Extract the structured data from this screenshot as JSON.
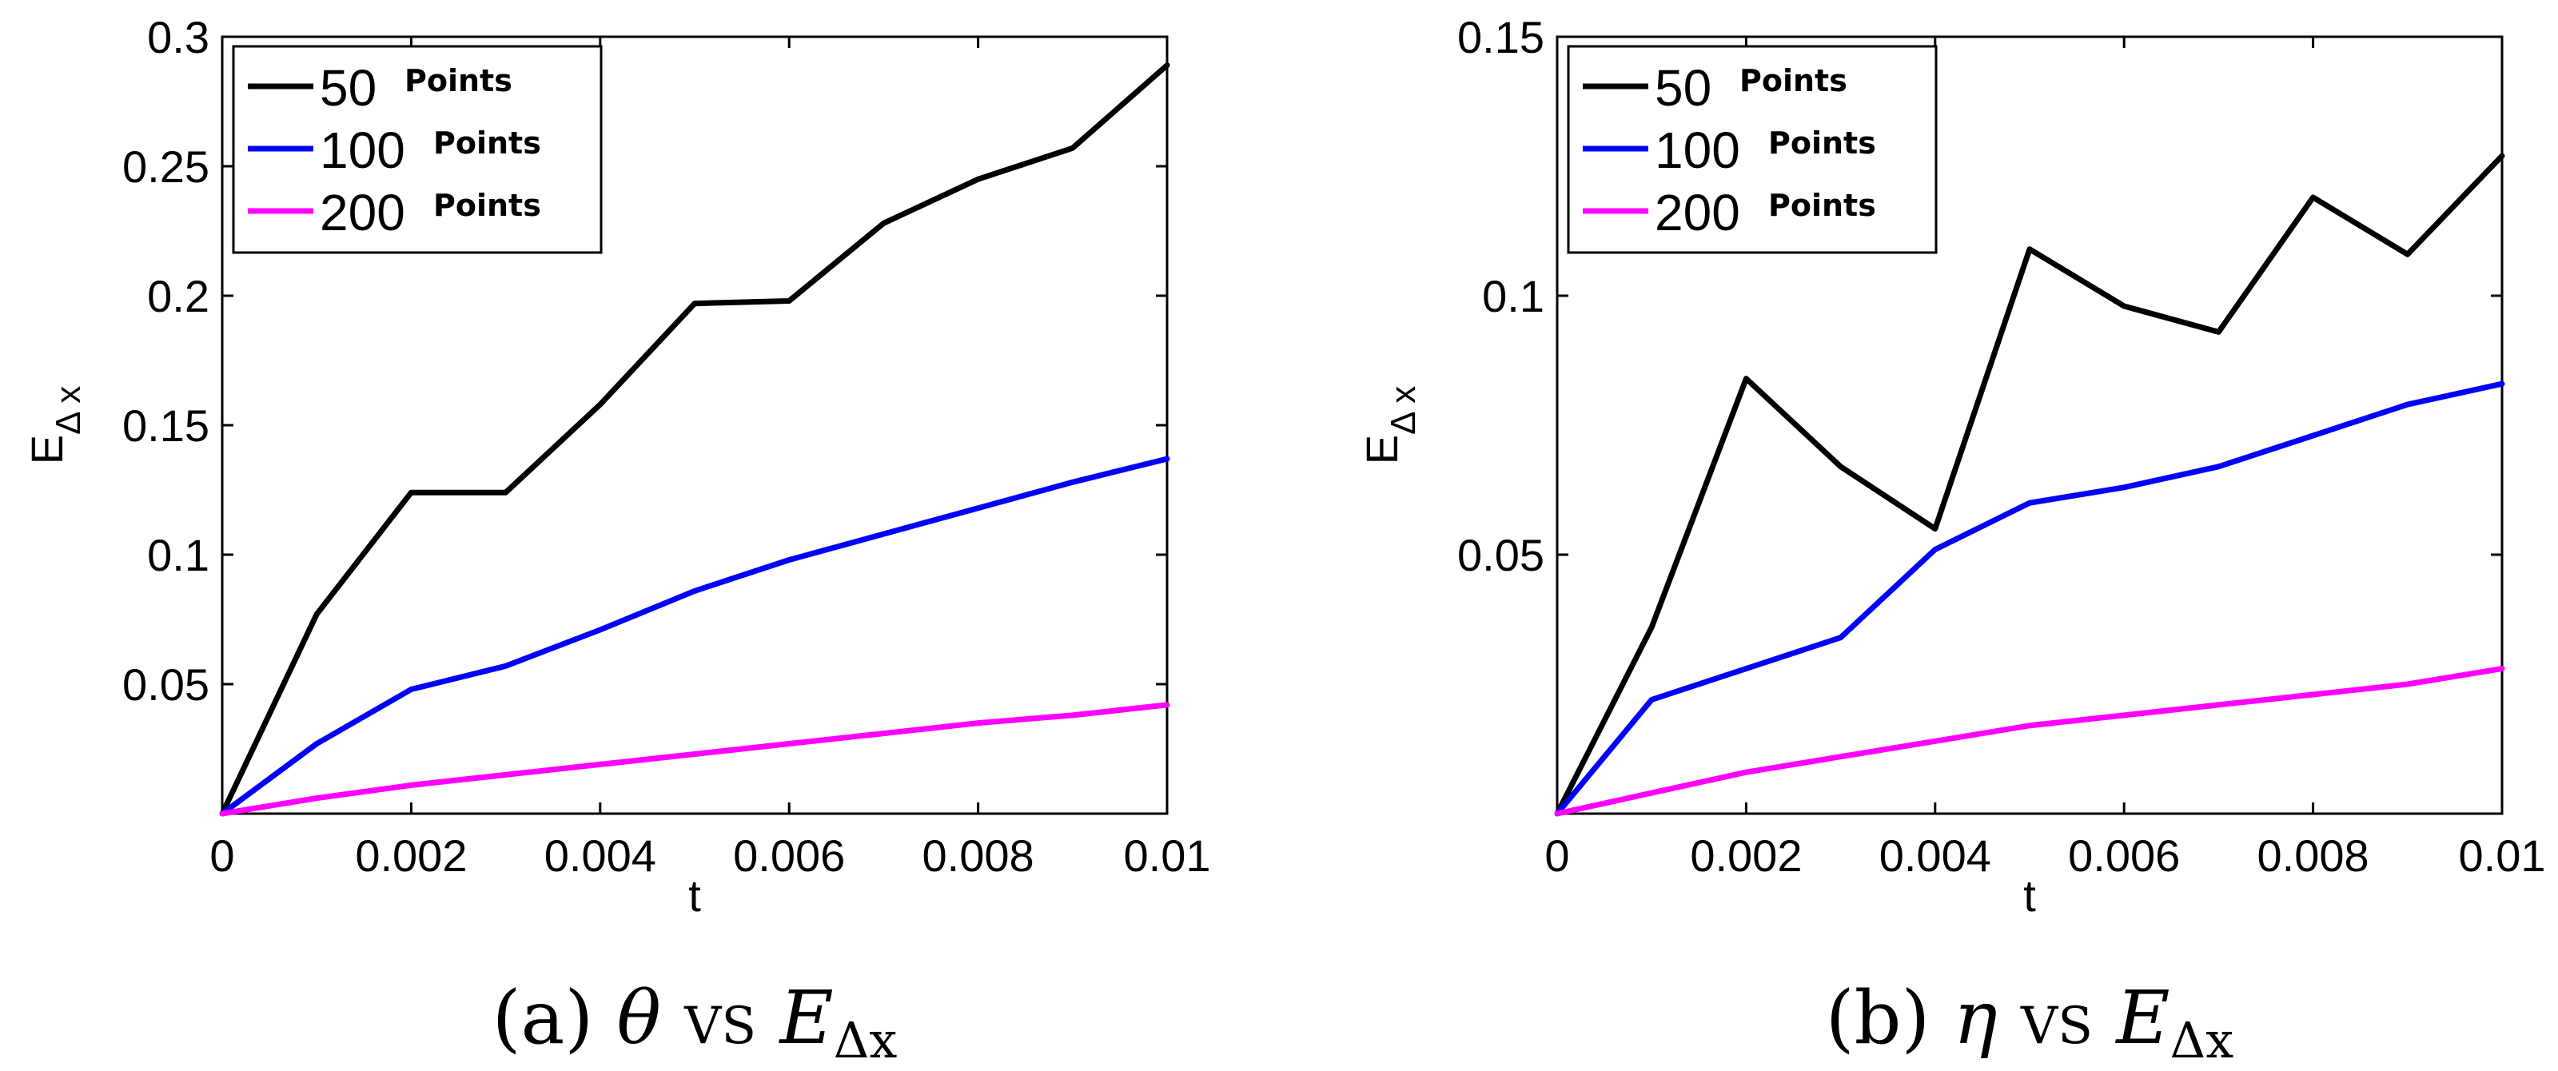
{
  "chart_data": [
    {
      "type": "line",
      "panel": "a",
      "caption": {
        "label": "(a)",
        "var": "θ",
        "vs": "vs",
        "err": "E",
        "err_sub": "Δx"
      },
      "xlabel": "t",
      "ylabel": "E",
      "ylabel_sub": "Δ x",
      "xlim": [
        0,
        0.01
      ],
      "ylim": [
        0,
        0.3
      ],
      "xticks": [
        "0",
        "0.002",
        "0.004",
        "0.006",
        "0.008",
        "0.01"
      ],
      "xtick_values": [
        0,
        0.002,
        0.004,
        0.006,
        0.008,
        0.01
      ],
      "yticks": [
        "0.05",
        "0.1",
        "0.15",
        "0.2",
        "0.25",
        "0.3"
      ],
      "ytick_values": [
        0.05,
        0.1,
        0.15,
        0.2,
        0.25,
        0.3
      ],
      "x": [
        0,
        0.001,
        0.002,
        0.003,
        0.004,
        0.005,
        0.006,
        0.007,
        0.008,
        0.009,
        0.01
      ],
      "legend_position": "top-left",
      "series": [
        {
          "name": "50",
          "suffix": "Points",
          "color": "#000000",
          "values": [
            0,
            0.077,
            0.124,
            0.124,
            0.158,
            0.197,
            0.198,
            0.228,
            0.245,
            0.257,
            0.289
          ]
        },
        {
          "name": "100",
          "suffix": "Points",
          "color": "#0000ff",
          "values": [
            0,
            0.027,
            0.048,
            0.057,
            0.071,
            0.086,
            0.098,
            0.108,
            0.118,
            0.128,
            0.137
          ]
        },
        {
          "name": "200",
          "suffix": "Points",
          "color": "#ff00ff",
          "values": [
            0,
            0.006,
            0.011,
            0.015,
            0.019,
            0.023,
            0.027,
            0.031,
            0.035,
            0.038,
            0.042
          ]
        }
      ]
    },
    {
      "type": "line",
      "panel": "b",
      "caption": {
        "label": "(b)",
        "var": "η",
        "vs": "vs",
        "err": "E",
        "err_sub": "Δx"
      },
      "xlabel": "t",
      "ylabel": "E",
      "ylabel_sub": "Δ x",
      "xlim": [
        0,
        0.01
      ],
      "ylim": [
        0,
        0.15
      ],
      "xticks": [
        "0",
        "0.002",
        "0.004",
        "0.006",
        "0.008",
        "0.01"
      ],
      "xtick_values": [
        0,
        0.002,
        0.004,
        0.006,
        0.008,
        0.01
      ],
      "yticks": [
        "0.05",
        "0.1",
        "0.15"
      ],
      "ytick_values": [
        0.05,
        0.1,
        0.15
      ],
      "x": [
        0,
        0.001,
        0.002,
        0.003,
        0.004,
        0.005,
        0.006,
        0.007,
        0.008,
        0.009,
        0.01
      ],
      "legend_position": "top-left",
      "series": [
        {
          "name": "50",
          "suffix": "Points",
          "color": "#000000",
          "values": [
            0,
            0.036,
            0.084,
            0.067,
            0.055,
            0.109,
            0.098,
            0.093,
            0.119,
            0.108,
            0.127
          ]
        },
        {
          "name": "100",
          "suffix": "Points",
          "color": "#0000ff",
          "values": [
            0,
            0.022,
            0.028,
            0.034,
            0.051,
            0.06,
            0.063,
            0.067,
            0.073,
            0.079,
            0.083
          ]
        },
        {
          "name": "200",
          "suffix": "Points",
          "color": "#ff00ff",
          "values": [
            0,
            0.004,
            0.008,
            0.011,
            0.014,
            0.017,
            0.019,
            0.021,
            0.023,
            0.025,
            0.028
          ]
        }
      ]
    }
  ]
}
